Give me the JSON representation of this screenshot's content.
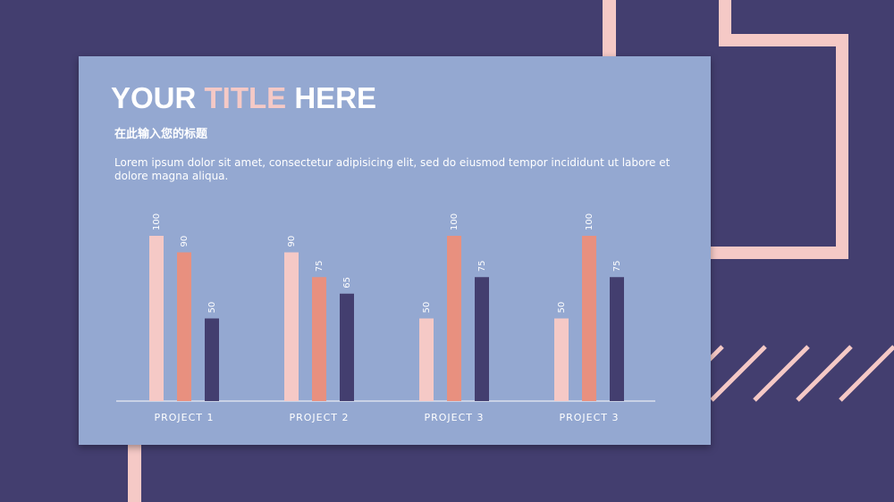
{
  "header": {
    "title_part1": "YOUR",
    "title_accent": "TITLE",
    "title_part3": "HERE",
    "subtitle": "在此输入您的标题",
    "body": "Lorem ipsum dolor sit amet, consectetur adipisicing elit, sed do eiusmod tempor incididunt ut labore et dolore magna aliqua."
  },
  "colors": {
    "background": "#433e6f",
    "card": "#94a8d1",
    "accent_pink": "#f5c9c6",
    "series_1": "#f5c9c6",
    "series_2": "#e8907f",
    "series_3": "#433e6f",
    "axis": "#c9d2e6"
  },
  "chart_data": {
    "type": "bar",
    "title": "",
    "xlabel": "",
    "ylabel": "",
    "categories": [
      "PROJECT  1",
      "PROJECT  2",
      "PROJECT  3",
      "PROJECT  3"
    ],
    "series": [
      {
        "values": [
          100,
          90,
          50,
          50
        ]
      },
      {
        "values": [
          90,
          75,
          100,
          100
        ]
      },
      {
        "values": [
          50,
          65,
          75,
          75
        ]
      }
    ],
    "ylim": [
      0,
      100
    ],
    "grid": false,
    "legend": "none",
    "data_labels": true
  }
}
